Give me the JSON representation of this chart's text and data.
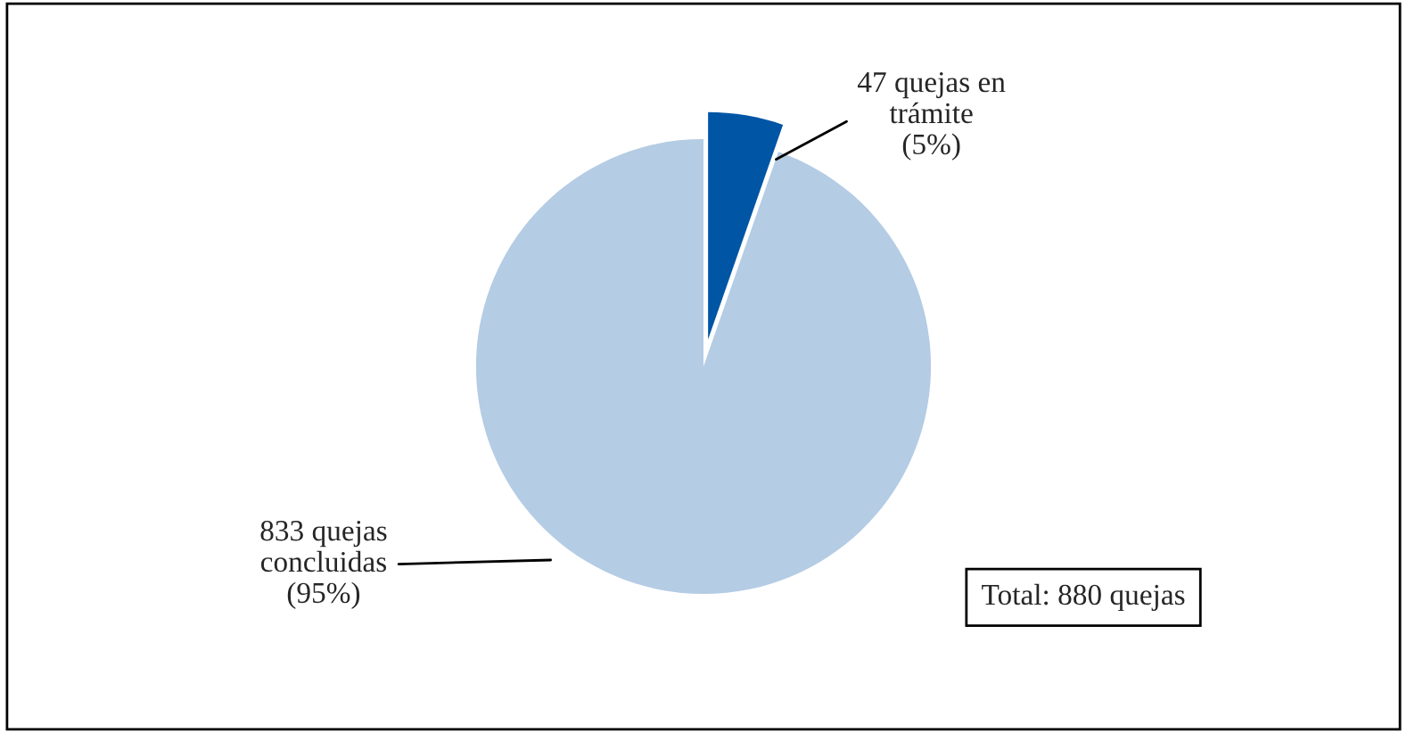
{
  "chart_data": {
    "type": "pie",
    "categories": [
      "833 quejas\nconcluidas\n(95%)",
      "47 quejas en\ntrámite\n(5%)"
    ],
    "values": [
      833,
      47
    ],
    "colors": [
      "#b4cce4",
      "#0055a5"
    ],
    "annotations": [
      "Total: 880 quejas"
    ],
    "legend": false
  }
}
